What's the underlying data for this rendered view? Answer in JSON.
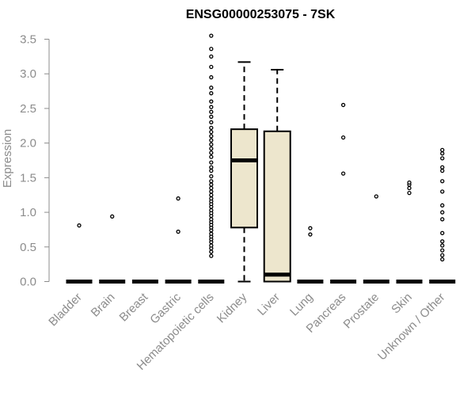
{
  "chart_data": {
    "type": "box",
    "title": "ENSG00000253075 - 7SK",
    "xlabel": "",
    "ylabel": "Expression",
    "ylim": [
      0,
      3.6
    ],
    "yticks": [
      "0.0",
      "0.5",
      "1.0",
      "1.5",
      "2.0",
      "2.5",
      "3.0",
      "3.5"
    ],
    "categories": [
      "Bladder",
      "Brain",
      "Breast",
      "Gastric",
      "Hematopoietic cells",
      "Kidney",
      "Liver",
      "Lung",
      "Pancreas",
      "Prostate",
      "Skin",
      "Unknown / Other"
    ],
    "box_fill": "#ede6cd",
    "box_stroke": "#000000",
    "axis_color": "#8c8c8c",
    "grid": false,
    "boxes": [
      {
        "min": 0,
        "q1": 0,
        "median": 0,
        "q3": 0,
        "max": 0,
        "outliers": [
          0.81
        ]
      },
      {
        "min": 0,
        "q1": 0,
        "median": 0,
        "q3": 0,
        "max": 0,
        "outliers": [
          0.94
        ]
      },
      {
        "min": 0,
        "q1": 0,
        "median": 0,
        "q3": 0,
        "max": 0,
        "outliers": []
      },
      {
        "min": 0,
        "q1": 0,
        "median": 0,
        "q3": 0,
        "max": 0,
        "outliers": [
          0.72,
          1.2
        ]
      },
      {
        "min": 0,
        "q1": 0,
        "median": 0,
        "q3": 0,
        "max": 0,
        "outliers": [
          0.37,
          0.43,
          0.48,
          0.52,
          0.57,
          0.61,
          0.65,
          0.69,
          0.74,
          0.78,
          0.82,
          0.86,
          0.9,
          0.95,
          0.99,
          1.03,
          1.08,
          1.12,
          1.16,
          1.2,
          1.25,
          1.3,
          1.35,
          1.4,
          1.45,
          1.52,
          1.6,
          1.65,
          1.72,
          1.8,
          1.86,
          1.92,
          1.98,
          2.04,
          2.1,
          2.16,
          2.22,
          2.3,
          2.38,
          2.45,
          2.52,
          2.6,
          2.72,
          2.8,
          2.95,
          3.1,
          3.25,
          3.36,
          3.55
        ]
      },
      {
        "min": 0,
        "q1": 0.78,
        "median": 1.75,
        "q3": 2.2,
        "max": 3.17,
        "outliers": []
      },
      {
        "min": 0,
        "q1": 0,
        "median": 0.1,
        "q3": 2.17,
        "max": 3.06,
        "outliers": []
      },
      {
        "min": 0,
        "q1": 0,
        "median": 0,
        "q3": 0,
        "max": 0,
        "outliers": [
          0.68,
          0.77
        ]
      },
      {
        "min": 0,
        "q1": 0,
        "median": 0,
        "q3": 0,
        "max": 0,
        "outliers": [
          1.56,
          2.08,
          2.55
        ]
      },
      {
        "min": 0,
        "q1": 0,
        "median": 0,
        "q3": 0,
        "max": 0,
        "outliers": [
          1.23
        ]
      },
      {
        "min": 0,
        "q1": 0,
        "median": 0,
        "q3": 0,
        "max": 0,
        "outliers": [
          1.28,
          1.35,
          1.4,
          1.43
        ]
      },
      {
        "min": 0,
        "q1": 0,
        "median": 0,
        "q3": 0,
        "max": 0,
        "outliers": [
          0.32,
          0.38,
          0.45,
          0.52,
          0.58,
          0.7,
          0.9,
          1.0,
          1.1,
          1.3,
          1.45,
          1.6,
          1.65,
          1.78,
          1.85,
          1.9
        ]
      }
    ]
  }
}
